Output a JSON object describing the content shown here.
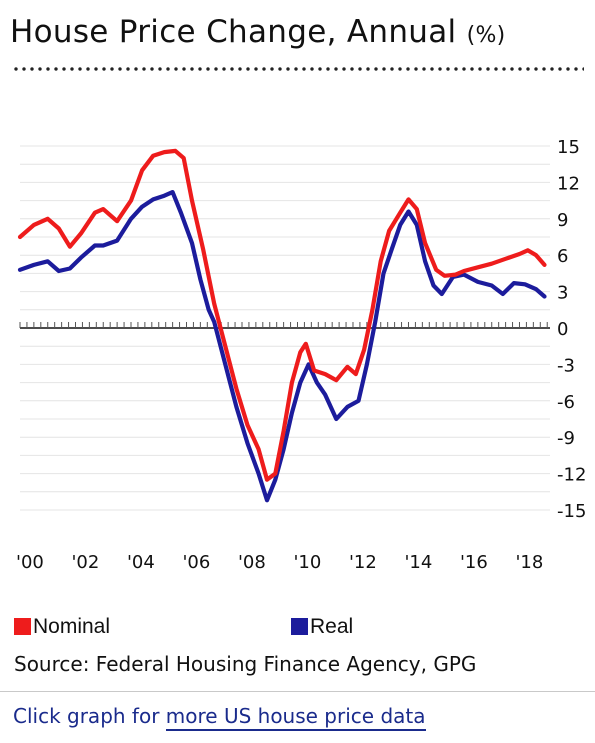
{
  "title": {
    "main": "House Price Change, Annual",
    "unit": "(%)"
  },
  "legend": [
    {
      "label": "Nominal",
      "color": "#ee1c1c"
    },
    {
      "label": "Real",
      "color": "#1c1c9c"
    }
  ],
  "source": "Source: Federal Housing Finance Agency, GPG",
  "link": {
    "prefix": "Click graph for ",
    "text": "more US house price data"
  },
  "chart_data": {
    "type": "line",
    "title": "House Price Change, Annual (%)",
    "ylim": [
      -15,
      15
    ],
    "y_ticks": [
      15,
      12,
      9,
      6,
      3,
      0,
      -3,
      -6,
      -9,
      -12,
      -15
    ],
    "y_tick_labels": [
      "15",
      "12",
      "9",
      "6",
      "3",
      "0",
      "-3",
      "-6",
      "-9",
      "-12",
      "-15"
    ],
    "x_ticks": [
      2000,
      2002,
      2004,
      2006,
      2008,
      2010,
      2012,
      2014,
      2016,
      2018
    ],
    "x_tick_labels": [
      "'00",
      "'02",
      "'04",
      "'06",
      "'08",
      "'10",
      "'12",
      "'14",
      "'16",
      "'18"
    ],
    "grid": true,
    "legend_position": "bottom",
    "series": [
      {
        "name": "Nominal",
        "color": "#ee1c1c",
        "points": [
          [
            2000.0,
            7.5
          ],
          [
            2000.5,
            8.5
          ],
          [
            2001.0,
            9.0
          ],
          [
            2001.4,
            8.2
          ],
          [
            2001.8,
            6.7
          ],
          [
            2002.2,
            7.8
          ],
          [
            2002.7,
            9.5
          ],
          [
            2003.0,
            9.8
          ],
          [
            2003.5,
            8.8
          ],
          [
            2004.0,
            10.5
          ],
          [
            2004.4,
            13.0
          ],
          [
            2004.8,
            14.2
          ],
          [
            2005.2,
            14.5
          ],
          [
            2005.6,
            14.6
          ],
          [
            2005.9,
            14.0
          ],
          [
            2006.2,
            10.5
          ],
          [
            2006.6,
            6.5
          ],
          [
            2007.0,
            2.0
          ],
          [
            2007.4,
            -1.5
          ],
          [
            2007.8,
            -5.0
          ],
          [
            2008.2,
            -8.0
          ],
          [
            2008.6,
            -10.0
          ],
          [
            2008.9,
            -12.5
          ],
          [
            2009.2,
            -12.0
          ],
          [
            2009.5,
            -8.5
          ],
          [
            2009.8,
            -4.5
          ],
          [
            2010.1,
            -2.0
          ],
          [
            2010.3,
            -1.3
          ],
          [
            2010.6,
            -3.5
          ],
          [
            2011.0,
            -3.8
          ],
          [
            2011.4,
            -4.3
          ],
          [
            2011.8,
            -3.2
          ],
          [
            2012.1,
            -3.8
          ],
          [
            2012.4,
            -1.8
          ],
          [
            2012.7,
            1.5
          ],
          [
            2013.0,
            5.5
          ],
          [
            2013.3,
            8.0
          ],
          [
            2013.7,
            9.5
          ],
          [
            2014.0,
            10.6
          ],
          [
            2014.3,
            9.8
          ],
          [
            2014.6,
            7.0
          ],
          [
            2015.0,
            4.8
          ],
          [
            2015.3,
            4.3
          ],
          [
            2015.7,
            4.4
          ],
          [
            2016.0,
            4.7
          ],
          [
            2016.5,
            5.0
          ],
          [
            2017.0,
            5.3
          ],
          [
            2017.5,
            5.7
          ],
          [
            2018.0,
            6.1
          ],
          [
            2018.3,
            6.4
          ],
          [
            2018.6,
            6.0
          ],
          [
            2018.9,
            5.2
          ]
        ]
      },
      {
        "name": "Real",
        "color": "#1c1c9c",
        "points": [
          [
            2000.0,
            4.8
          ],
          [
            2000.5,
            5.2
          ],
          [
            2001.0,
            5.5
          ],
          [
            2001.4,
            4.7
          ],
          [
            2001.8,
            4.9
          ],
          [
            2002.2,
            5.8
          ],
          [
            2002.7,
            6.8
          ],
          [
            2003.0,
            6.8
          ],
          [
            2003.5,
            7.2
          ],
          [
            2004.0,
            9.0
          ],
          [
            2004.4,
            10.0
          ],
          [
            2004.8,
            10.6
          ],
          [
            2005.2,
            10.9
          ],
          [
            2005.5,
            11.2
          ],
          [
            2005.8,
            9.5
          ],
          [
            2006.2,
            7.0
          ],
          [
            2006.5,
            4.0
          ],
          [
            2006.8,
            1.5
          ],
          [
            2007.0,
            0.5
          ],
          [
            2007.4,
            -3.0
          ],
          [
            2007.8,
            -6.5
          ],
          [
            2008.2,
            -9.5
          ],
          [
            2008.6,
            -12.0
          ],
          [
            2008.9,
            -14.2
          ],
          [
            2009.2,
            -12.5
          ],
          [
            2009.5,
            -10.0
          ],
          [
            2009.8,
            -7.0
          ],
          [
            2010.1,
            -4.5
          ],
          [
            2010.4,
            -3.0
          ],
          [
            2010.7,
            -4.5
          ],
          [
            2011.0,
            -5.5
          ],
          [
            2011.4,
            -7.5
          ],
          [
            2011.8,
            -6.5
          ],
          [
            2012.2,
            -6.0
          ],
          [
            2012.5,
            -3.0
          ],
          [
            2012.8,
            0.5
          ],
          [
            2013.1,
            4.5
          ],
          [
            2013.4,
            6.5
          ],
          [
            2013.7,
            8.5
          ],
          [
            2014.0,
            9.6
          ],
          [
            2014.3,
            8.5
          ],
          [
            2014.6,
            5.5
          ],
          [
            2014.9,
            3.5
          ],
          [
            2015.2,
            2.8
          ],
          [
            2015.6,
            4.2
          ],
          [
            2016.0,
            4.4
          ],
          [
            2016.5,
            3.8
          ],
          [
            2017.0,
            3.5
          ],
          [
            2017.4,
            2.8
          ],
          [
            2017.8,
            3.7
          ],
          [
            2018.2,
            3.6
          ],
          [
            2018.6,
            3.2
          ],
          [
            2018.9,
            2.6
          ]
        ]
      }
    ]
  }
}
